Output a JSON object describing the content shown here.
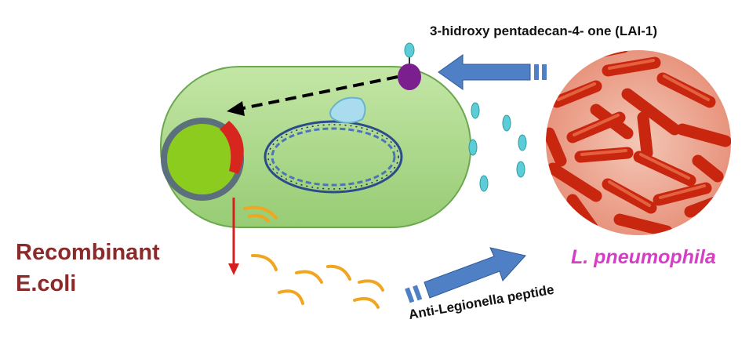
{
  "labels": {
    "signal_molecule": "3-hidroxy pentadecan-4- one (LAI-1)",
    "host_line1": "Recombinant",
    "host_line2": "E.coli",
    "pathogen": "L. pneumophila",
    "secreted_product": "Anti-Legionella peptide"
  },
  "colors": {
    "cell_fill": "#a9d88a",
    "cell_edge": "#6aa84f",
    "plasmid": "#8ccc1e",
    "arrow_blue": "#4f7fc4",
    "receptor": "#7b1e8e",
    "signal_droplet": "#5ccdd6",
    "peptide_arc": "#f0a621",
    "secretion_arrow": "#d42020",
    "bacteria": "#d43218",
    "host_text": "#8b2a2a",
    "pathogen_text": "#d63fc4"
  },
  "icons": [
    "receptor-icon",
    "plasmid-icon",
    "dna-icon",
    "bacteria-cluster-icon"
  ]
}
